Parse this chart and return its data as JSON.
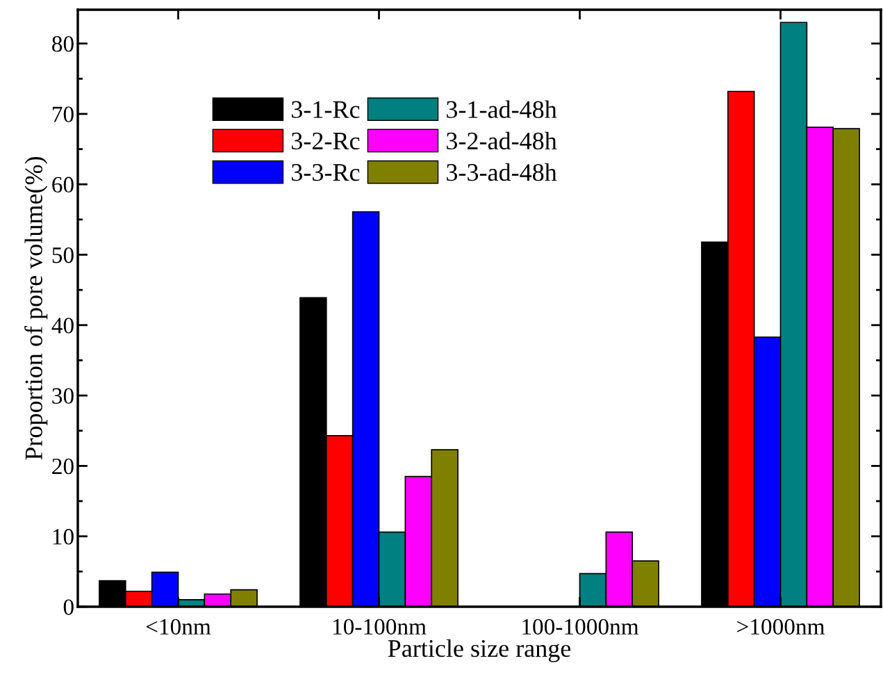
{
  "chart_data": {
    "type": "bar",
    "xlabel": "Particle size range",
    "ylabel": "Proportion of pore volume(%)",
    "categories": [
      "<10nm",
      "10-100nm",
      "100-1000nm",
      ">1000nm"
    ],
    "series": [
      {
        "name": "3-1-Rc",
        "color": "#000000",
        "values": [
          3.7,
          43.9,
          null,
          51.8
        ]
      },
      {
        "name": "3-2-Rc",
        "color": "#ff0000",
        "values": [
          2.2,
          24.3,
          null,
          73.2
        ]
      },
      {
        "name": "3-3-Rc",
        "color": "#0000ff",
        "values": [
          4.9,
          56.1,
          null,
          38.3
        ]
      },
      {
        "name": "3-1-ad-48h",
        "color": "#008080",
        "values": [
          1.0,
          10.6,
          4.7,
          83.0
        ]
      },
      {
        "name": "3-2-ad-48h",
        "color": "#ff00ff",
        "values": [
          1.8,
          18.5,
          10.6,
          68.1
        ]
      },
      {
        "name": "3-3-ad-48h",
        "color": "#808000",
        "values": [
          2.4,
          22.3,
          6.5,
          67.9
        ]
      }
    ],
    "ylim": [
      0,
      84.8
    ],
    "yticks": [
      0,
      10,
      20,
      30,
      40,
      50,
      60,
      70,
      80
    ],
    "grid": false,
    "legend": "top left"
  }
}
